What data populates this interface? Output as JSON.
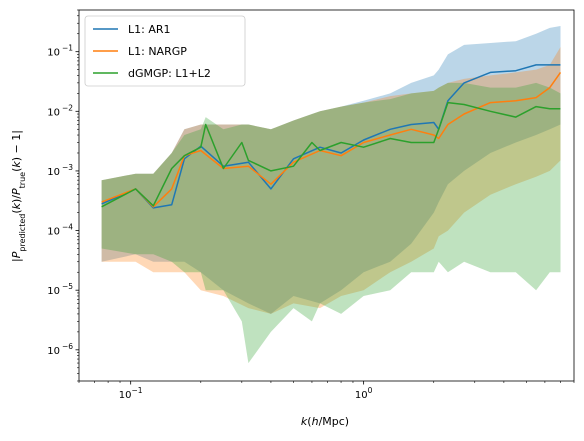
{
  "chart_data": {
    "type": "line",
    "x_scale": "log",
    "y_scale": "log",
    "xlabel": "k(h/Mpc)",
    "ylabel": "|P_predicted(k)/P_true(k) − 1|",
    "xlim": [
      0.06,
      8.0
    ],
    "ylim": [
      3e-07,
      0.5
    ],
    "x_ticks": [
      {
        "value": 0.1,
        "base": "10",
        "exp": "−1"
      },
      {
        "value": 1,
        "base": "10",
        "exp": "0"
      }
    ],
    "y_ticks": [
      {
        "value": 1e-06,
        "base": "10",
        "exp": "−6"
      },
      {
        "value": 1e-05,
        "base": "10",
        "exp": "−5"
      },
      {
        "value": 0.0001,
        "base": "10",
        "exp": "−4"
      },
      {
        "value": 0.001,
        "base": "10",
        "exp": "−3"
      },
      {
        "value": 0.01,
        "base": "10",
        "exp": "−2"
      },
      {
        "value": 0.1,
        "base": "10",
        "exp": "−1"
      }
    ],
    "grid": false,
    "legend_position": "top-left",
    "series": [
      {
        "name": "L1: AR1",
        "color": "#1f77b4",
        "x": [
          0.075,
          0.105,
          0.125,
          0.15,
          0.17,
          0.2,
          0.25,
          0.32,
          0.4,
          0.5,
          0.65,
          0.8,
          1.0,
          1.3,
          1.6,
          2.0,
          2.1,
          2.3,
          2.7,
          3.5,
          4.5,
          5.5,
          6.3,
          7.0
        ],
        "y": [
          0.00028,
          0.0005,
          0.00024,
          0.00027,
          0.0016,
          0.0026,
          0.0012,
          0.0014,
          0.0005,
          0.0016,
          0.0025,
          0.002,
          0.0033,
          0.005,
          0.006,
          0.0065,
          0.005,
          0.015,
          0.03,
          0.045,
          0.048,
          0.06,
          0.06,
          0.06
        ],
        "band_low": [
          3e-05,
          4e-05,
          3e-05,
          3e-05,
          3e-05,
          2e-05,
          1e-05,
          6e-06,
          4e-06,
          8e-06,
          6e-06,
          1e-05,
          2e-05,
          3e-05,
          6e-05,
          0.0002,
          0.0003,
          0.0006,
          0.001,
          0.002,
          0.003,
          0.004,
          0.005,
          0.006
        ],
        "band_high": [
          0.0007,
          0.0009,
          0.0009,
          0.002,
          0.005,
          0.006,
          0.006,
          0.006,
          0.005,
          0.007,
          0.01,
          0.012,
          0.015,
          0.02,
          0.03,
          0.04,
          0.05,
          0.09,
          0.13,
          0.14,
          0.15,
          0.2,
          0.25,
          0.27
        ]
      },
      {
        "name": "L1: NARGP",
        "color": "#ff7f0e",
        "x": [
          0.075,
          0.105,
          0.125,
          0.15,
          0.17,
          0.2,
          0.25,
          0.32,
          0.4,
          0.5,
          0.65,
          0.8,
          1.0,
          1.3,
          1.6,
          2.0,
          2.1,
          2.3,
          2.7,
          3.5,
          4.5,
          5.5,
          6.3,
          7.0
        ],
        "y": [
          0.0003,
          0.0005,
          0.00025,
          0.0005,
          0.0018,
          0.0022,
          0.0011,
          0.0012,
          0.0006,
          0.0014,
          0.0022,
          0.0018,
          0.003,
          0.004,
          0.005,
          0.004,
          0.0035,
          0.006,
          0.009,
          0.014,
          0.015,
          0.017,
          0.025,
          0.045
        ],
        "band_low": [
          3e-05,
          3e-05,
          2e-05,
          2e-05,
          2e-05,
          1e-05,
          8e-06,
          5e-06,
          4e-06,
          6e-06,
          5e-06,
          8e-06,
          1e-05,
          2e-05,
          3e-05,
          5e-05,
          8e-05,
          0.0001,
          0.0002,
          0.0004,
          0.0006,
          0.0008,
          0.001,
          0.0015
        ],
        "band_high": [
          0.0007,
          0.0009,
          0.0009,
          0.002,
          0.005,
          0.006,
          0.006,
          0.006,
          0.005,
          0.007,
          0.01,
          0.012,
          0.014,
          0.018,
          0.02,
          0.022,
          0.025,
          0.03,
          0.035,
          0.04,
          0.045,
          0.05,
          0.06,
          0.12
        ]
      },
      {
        "name": "dGMGP: L1+L2",
        "color": "#2ca02c",
        "x": [
          0.075,
          0.105,
          0.125,
          0.15,
          0.17,
          0.2,
          0.21,
          0.25,
          0.3,
          0.32,
          0.4,
          0.5,
          0.6,
          0.65,
          0.8,
          1.0,
          1.3,
          1.6,
          2.0,
          2.1,
          2.3,
          2.7,
          3.5,
          4.5,
          5.5,
          6.3,
          7.0
        ],
        "y": [
          0.00025,
          0.0005,
          0.00026,
          0.0011,
          0.0018,
          0.0025,
          0.006,
          0.0011,
          0.003,
          0.0015,
          0.001,
          0.0012,
          0.003,
          0.0022,
          0.003,
          0.0025,
          0.0035,
          0.003,
          0.003,
          0.005,
          0.014,
          0.013,
          0.01,
          0.008,
          0.012,
          0.011,
          0.011
        ],
        "band_low": [
          5e-05,
          4e-05,
          4e-05,
          3e-05,
          2e-05,
          2e-05,
          1e-05,
          1e-05,
          3e-06,
          6e-07,
          2e-06,
          5e-06,
          3e-06,
          6e-06,
          4e-06,
          8e-06,
          1e-05,
          2e-05,
          2e-05,
          3e-05,
          2e-05,
          3e-05,
          2e-05,
          2e-05,
          1e-05,
          2e-05,
          2e-05
        ],
        "band_high": [
          0.0007,
          0.0009,
          0.0009,
          0.002,
          0.004,
          0.005,
          0.008,
          0.005,
          0.006,
          0.006,
          0.005,
          0.007,
          0.009,
          0.01,
          0.012,
          0.014,
          0.016,
          0.02,
          0.022,
          0.025,
          0.03,
          0.03,
          0.025,
          0.025,
          0.03,
          0.025,
          0.02
        ]
      }
    ]
  }
}
